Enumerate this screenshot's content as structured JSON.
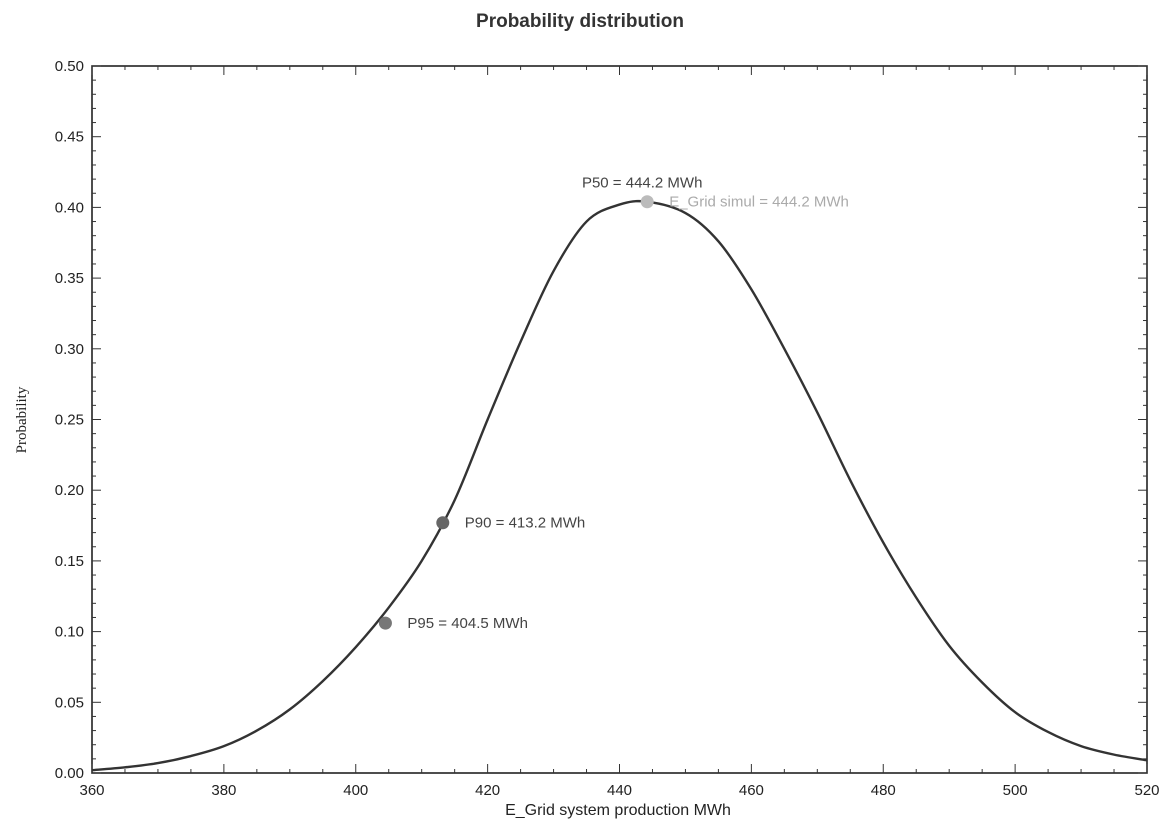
{
  "chart_data": {
    "type": "line",
    "title": "Probability distribution",
    "xlabel": "E_Grid system production MWh",
    "ylabel": "Probability",
    "xlim": [
      360,
      520
    ],
    "ylim": [
      0,
      0.5
    ],
    "x_ticks": [
      360,
      380,
      400,
      420,
      440,
      460,
      480,
      500,
      520
    ],
    "y_ticks": [
      0.0,
      0.05,
      0.1,
      0.15,
      0.2,
      0.25,
      0.3,
      0.35,
      0.4,
      0.45,
      0.5
    ],
    "y_tick_labels": [
      "0.00",
      "0.05",
      "0.10",
      "0.15",
      "0.20",
      "0.25",
      "0.30",
      "0.35",
      "0.40",
      "0.45",
      "0.50"
    ],
    "x_tick_labels": [
      "360",
      "380",
      "400",
      "420",
      "440",
      "460",
      "480",
      "500",
      "520"
    ],
    "grid": false,
    "series": [
      {
        "x": [
          360,
          365,
          370,
          375,
          380,
          385,
          390,
          395,
          400,
          405,
          410,
          415,
          420,
          425,
          430,
          435,
          440,
          444.2,
          450,
          455,
          460,
          465,
          470,
          475,
          480,
          485,
          490,
          495,
          500,
          505,
          510,
          515,
          520
        ],
        "y": [
          0.002,
          0.004,
          0.007,
          0.012,
          0.019,
          0.03,
          0.045,
          0.065,
          0.089,
          0.117,
          0.15,
          0.193,
          0.25,
          0.305,
          0.355,
          0.39,
          0.402,
          0.404,
          0.396,
          0.376,
          0.342,
          0.3,
          0.255,
          0.207,
          0.163,
          0.124,
          0.09,
          0.064,
          0.043,
          0.029,
          0.019,
          0.013,
          0.009
        ],
        "color": "#333333"
      }
    ],
    "annotations": [
      {
        "x": 444.2,
        "y": 0.404,
        "label": "P50 = 444.2 MWh",
        "color": "#444444",
        "label_position": "above"
      },
      {
        "x": 444.2,
        "y": 0.404,
        "label": "E_Grid simul = 444.2 MWh",
        "color": "#aaaaaa",
        "marker_color": "#bbbbbb",
        "label_position": "right"
      },
      {
        "x": 413.2,
        "y": 0.177,
        "label": "P90 = 413.2 MWh",
        "color": "#444444",
        "marker_color": "#666666",
        "label_position": "right"
      },
      {
        "x": 404.5,
        "y": 0.106,
        "label": "P95 = 404.5 MWh",
        "color": "#444444",
        "marker_color": "#777777",
        "label_position": "right"
      }
    ]
  }
}
